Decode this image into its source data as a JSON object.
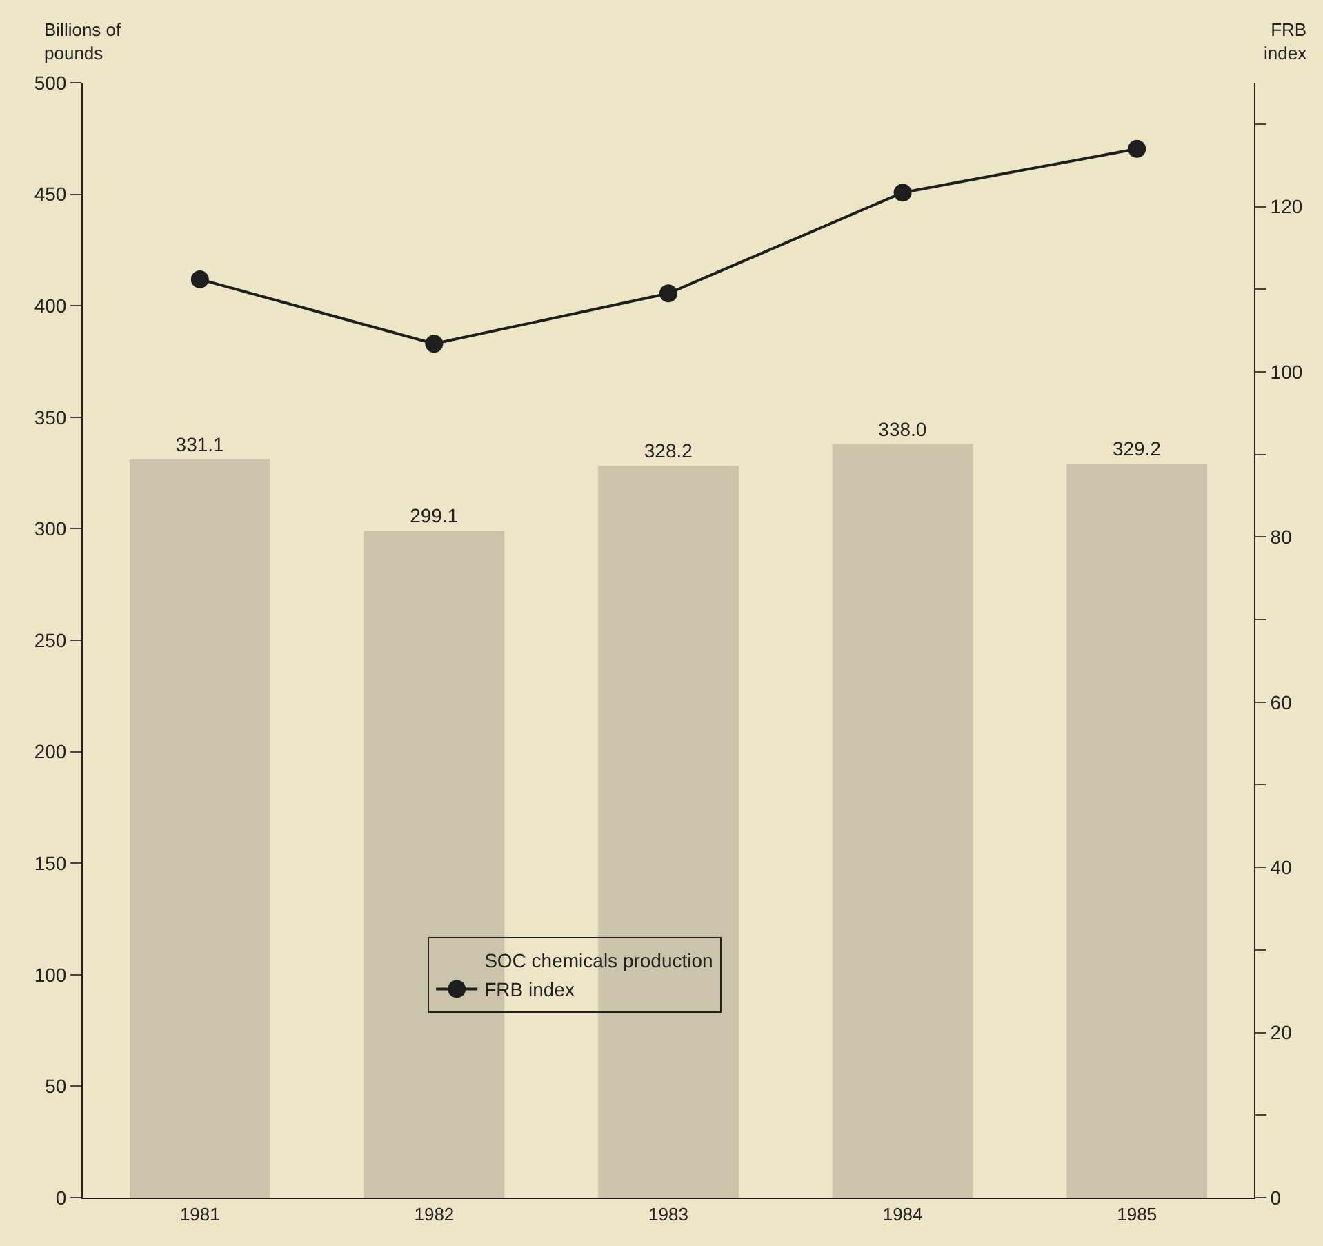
{
  "chart_data": {
    "type": "bar",
    "ylabel": "Billions of pounds",
    "y2label": "FRB index",
    "categories": [
      "1981",
      "1982",
      "1983",
      "1984",
      "1985"
    ],
    "series": [
      {
        "name": "SOC chemicals production",
        "color": "#c9c4aa",
        "values": [
          331.1,
          299.1,
          328.2,
          338.0,
          329.2
        ],
        "value_labels": [
          "331.1",
          "299.1",
          "328.2",
          "338.0",
          "329.2"
        ]
      },
      {
        "name": "FRB index",
        "type": "line",
        "axis": "y2",
        "color": "#1e1e1e",
        "values": [
          111.2,
          103.4,
          109.5,
          121.7,
          127.0
        ]
      }
    ],
    "ylim": [
      0,
      500
    ],
    "yticks": [
      0,
      50,
      100,
      150,
      200,
      250,
      300,
      350,
      400,
      450,
      500
    ],
    "y2lim": [
      0,
      135
    ],
    "y2ticks": [
      0,
      {
        "value": 10,
        "label": null
      },
      20,
      {
        "value": 30,
        "label": null
      },
      40,
      {
        "value": 50,
        "label": null
      },
      60,
      {
        "value": 70,
        "label": null
      },
      80,
      {
        "value": 90,
        "label": null
      },
      100,
      {
        "value": 110,
        "label": null
      },
      120,
      {
        "value": 130,
        "label": null
      }
    ],
    "marker": "circle",
    "line_style": "solid",
    "grid": false,
    "legend": "bottom"
  }
}
